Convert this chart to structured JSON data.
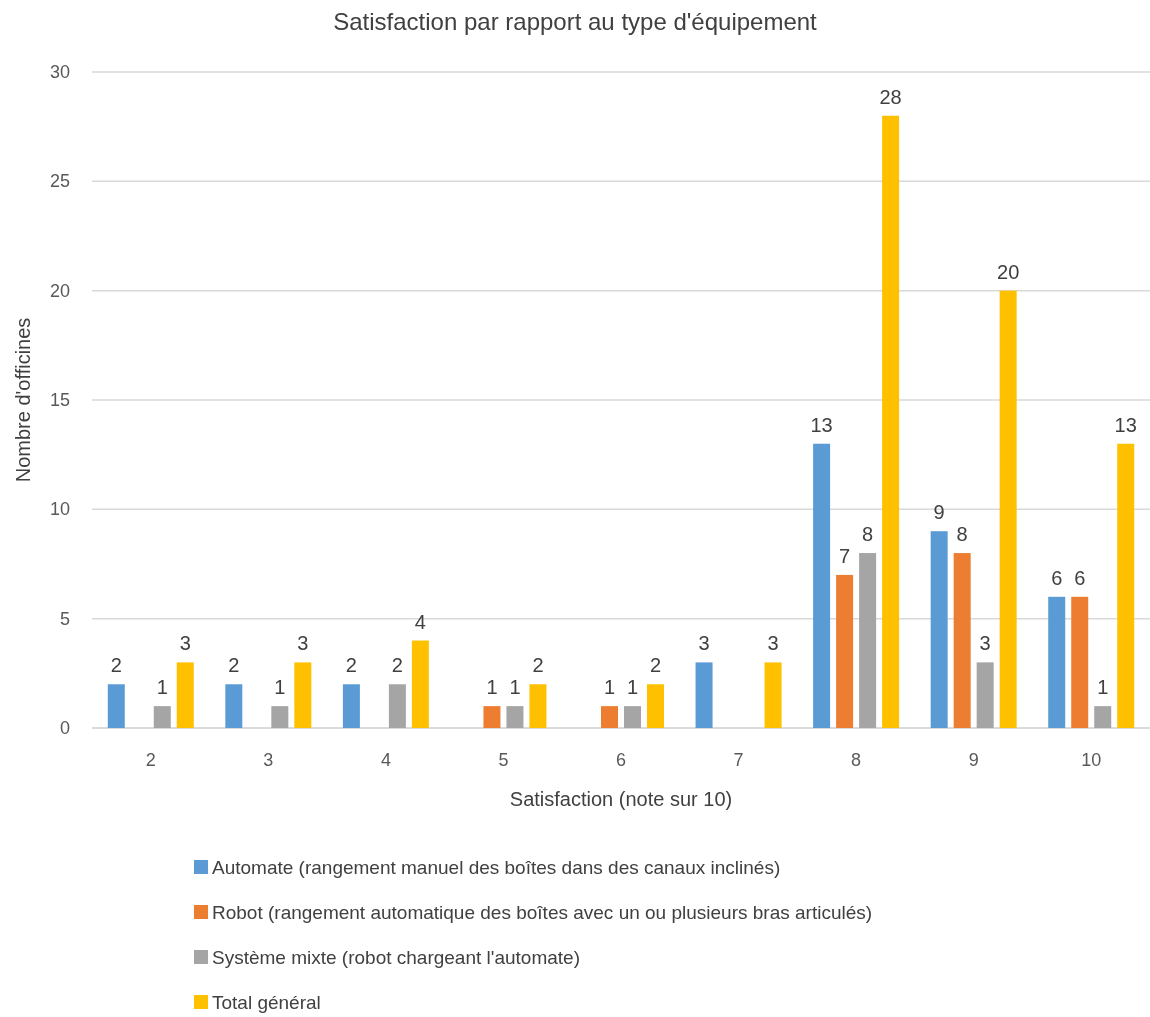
{
  "chart_data": {
    "type": "bar",
    "title": "Satisfaction par rapport au type d'équipement",
    "xlabel": "Satisfaction (note sur 10)",
    "ylabel": "Nombre d'officines",
    "categories": [
      "2",
      "3",
      "4",
      "5",
      "6",
      "7",
      "8",
      "9",
      "10"
    ],
    "series": [
      {
        "name": "Automate (rangement manuel des boîtes dans des canaux inclinés)",
        "color": "#5b9bd5",
        "values": [
          2,
          2,
          2,
          null,
          null,
          3,
          13,
          9,
          6
        ]
      },
      {
        "name": "Robot (rangement automatique des boîtes avec un ou plusieurs bras articulés)",
        "color": "#ed7d31",
        "values": [
          null,
          null,
          null,
          1,
          1,
          null,
          7,
          8,
          6
        ]
      },
      {
        "name": "Système mixte (robot chargeant l'automate)",
        "color": "#a5a5a5",
        "values": [
          1,
          1,
          2,
          1,
          1,
          null,
          8,
          3,
          1
        ]
      },
      {
        "name": "Total général",
        "color": "#ffc000",
        "values": [
          3,
          3,
          4,
          2,
          2,
          3,
          28,
          20,
          13
        ]
      }
    ],
    "ylim": [
      0,
      30
    ],
    "yticks": [
      0,
      5,
      10,
      15,
      20,
      25,
      30
    ],
    "grid": "y",
    "legend": "bottom",
    "data_labels": true
  }
}
